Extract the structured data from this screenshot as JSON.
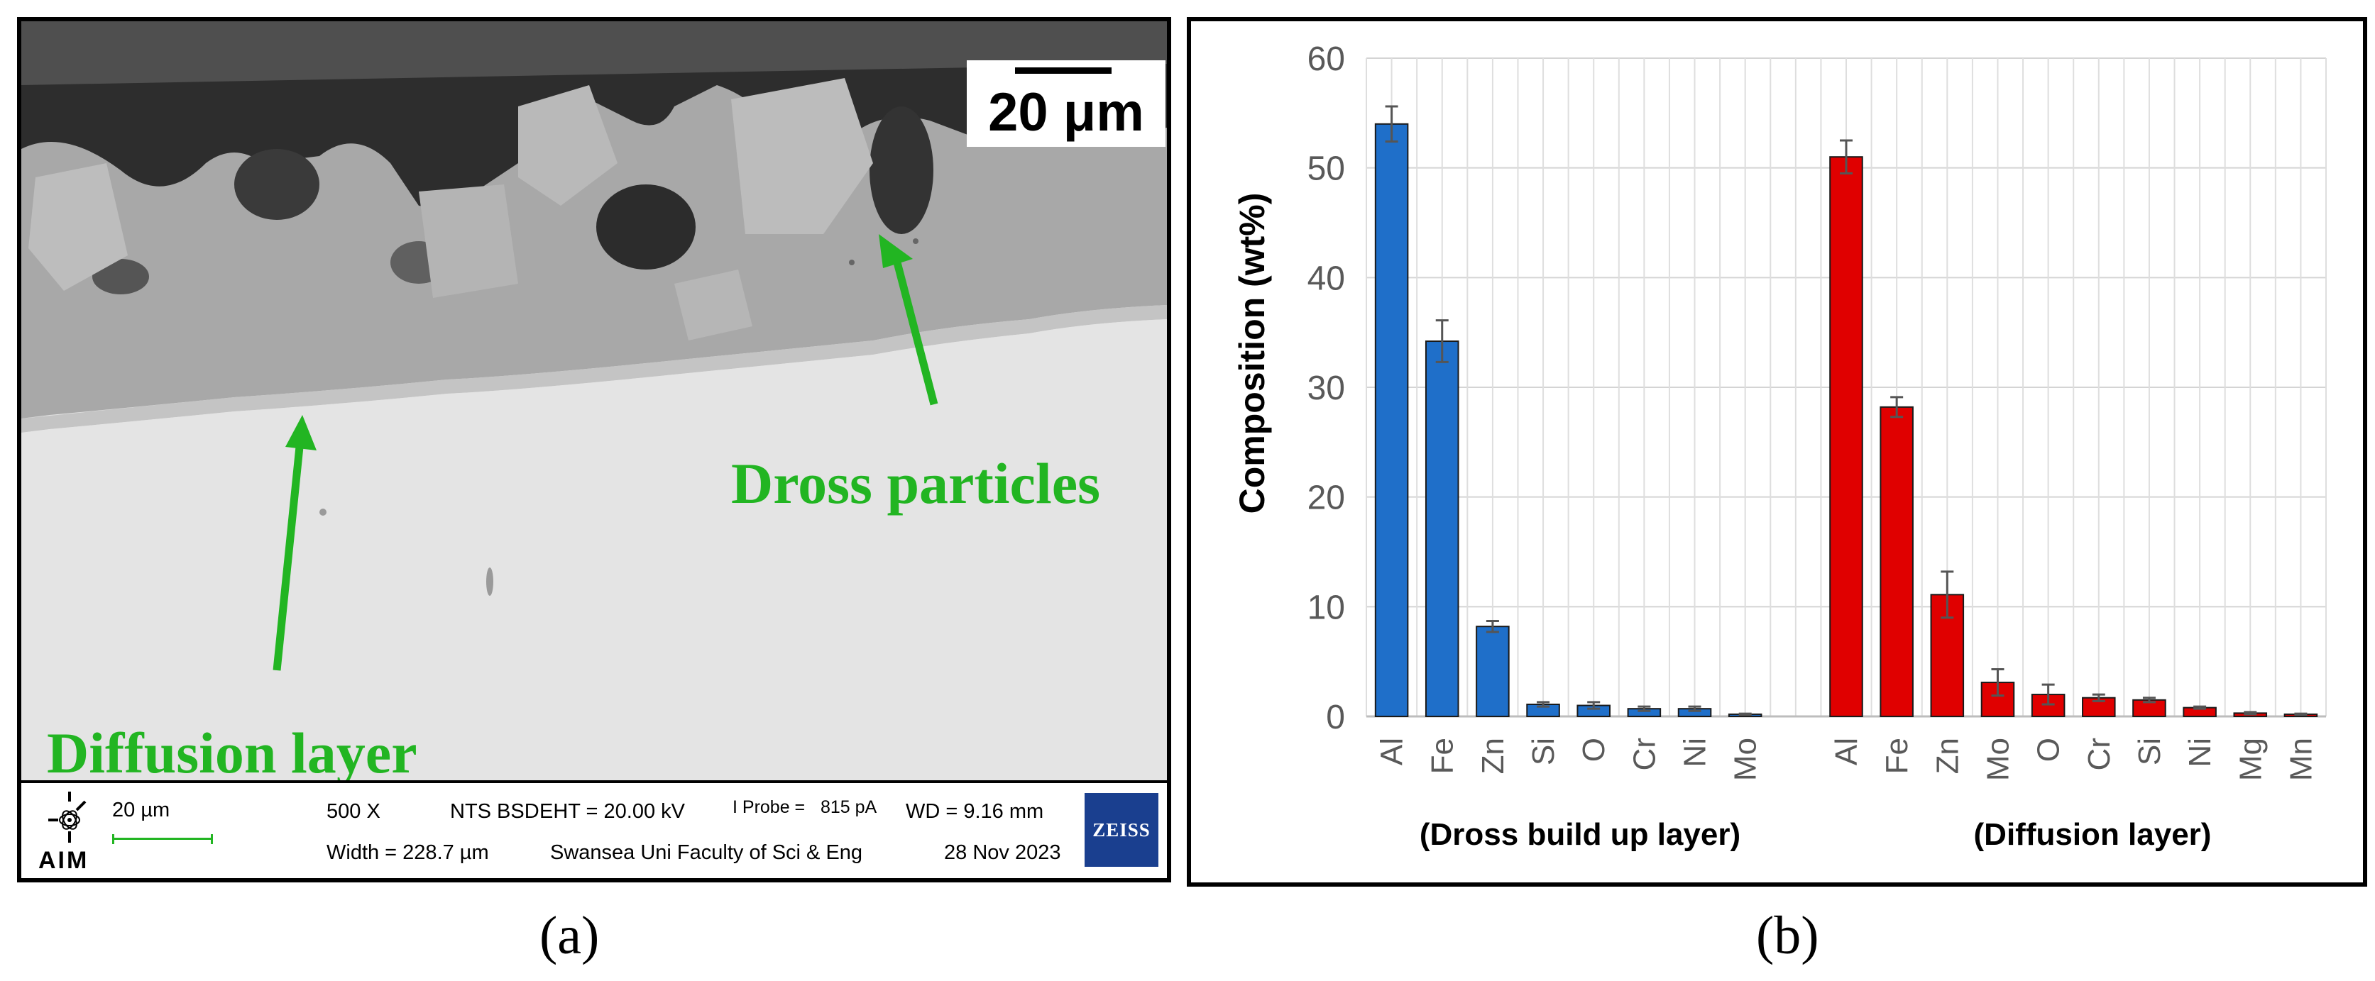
{
  "panel_a": {
    "caption": "(a)",
    "scale_bar_label": "20  μm",
    "annotations": {
      "dross": "Dross particles",
      "diffusion": "Diffusion layer"
    },
    "info_bar": {
      "logo_text": "AIM",
      "scale_label": "20 µm",
      "magnification": "500 X",
      "width": "Width = 228.7 µm",
      "detector": "NTS BSD",
      "eht": "EHT = 20.00 kV",
      "iprobe_label": "I Probe =",
      "iprobe_value": "815 pA",
      "facility": "Swansea Uni Faculty of Sci & Eng",
      "wd": "WD = 9.16 mm",
      "date": "28 Nov 2023",
      "brand": "ZEISS"
    },
    "colors": {
      "annotation": "#22b522",
      "brand": "#1a3f8f"
    }
  },
  "panel_b": {
    "caption": "(b)"
  },
  "chart_data": {
    "type": "bar",
    "ylabel": "Composition (wt%)",
    "ylim": [
      0,
      60
    ],
    "yticks": [
      0,
      10,
      20,
      30,
      40,
      50,
      60
    ],
    "grid": true,
    "groups": [
      {
        "name": "(Dross build up layer)",
        "color": "#1f6fc9",
        "categories": [
          "Al",
          "Fe",
          "Zn",
          "Si",
          "O",
          "Cr",
          "Ni",
          "Mo"
        ],
        "values": [
          54.0,
          34.2,
          8.2,
          1.1,
          1.0,
          0.7,
          0.7,
          0.2
        ],
        "errors": [
          1.6,
          1.9,
          0.5,
          0.2,
          0.3,
          0.2,
          0.2,
          0.05
        ]
      },
      {
        "name": "(Diffusion layer)",
        "color": "#e00000",
        "categories": [
          "Al",
          "Fe",
          "Zn",
          "Mo",
          "O",
          "Cr",
          "Si",
          "Ni",
          "Mg",
          "Mn"
        ],
        "values": [
          51.0,
          28.2,
          11.1,
          3.1,
          2.0,
          1.7,
          1.5,
          0.8,
          0.3,
          0.2
        ],
        "errors": [
          1.5,
          0.9,
          2.1,
          1.2,
          0.9,
          0.3,
          0.2,
          0.1,
          0.1,
          0.05
        ]
      }
    ]
  }
}
